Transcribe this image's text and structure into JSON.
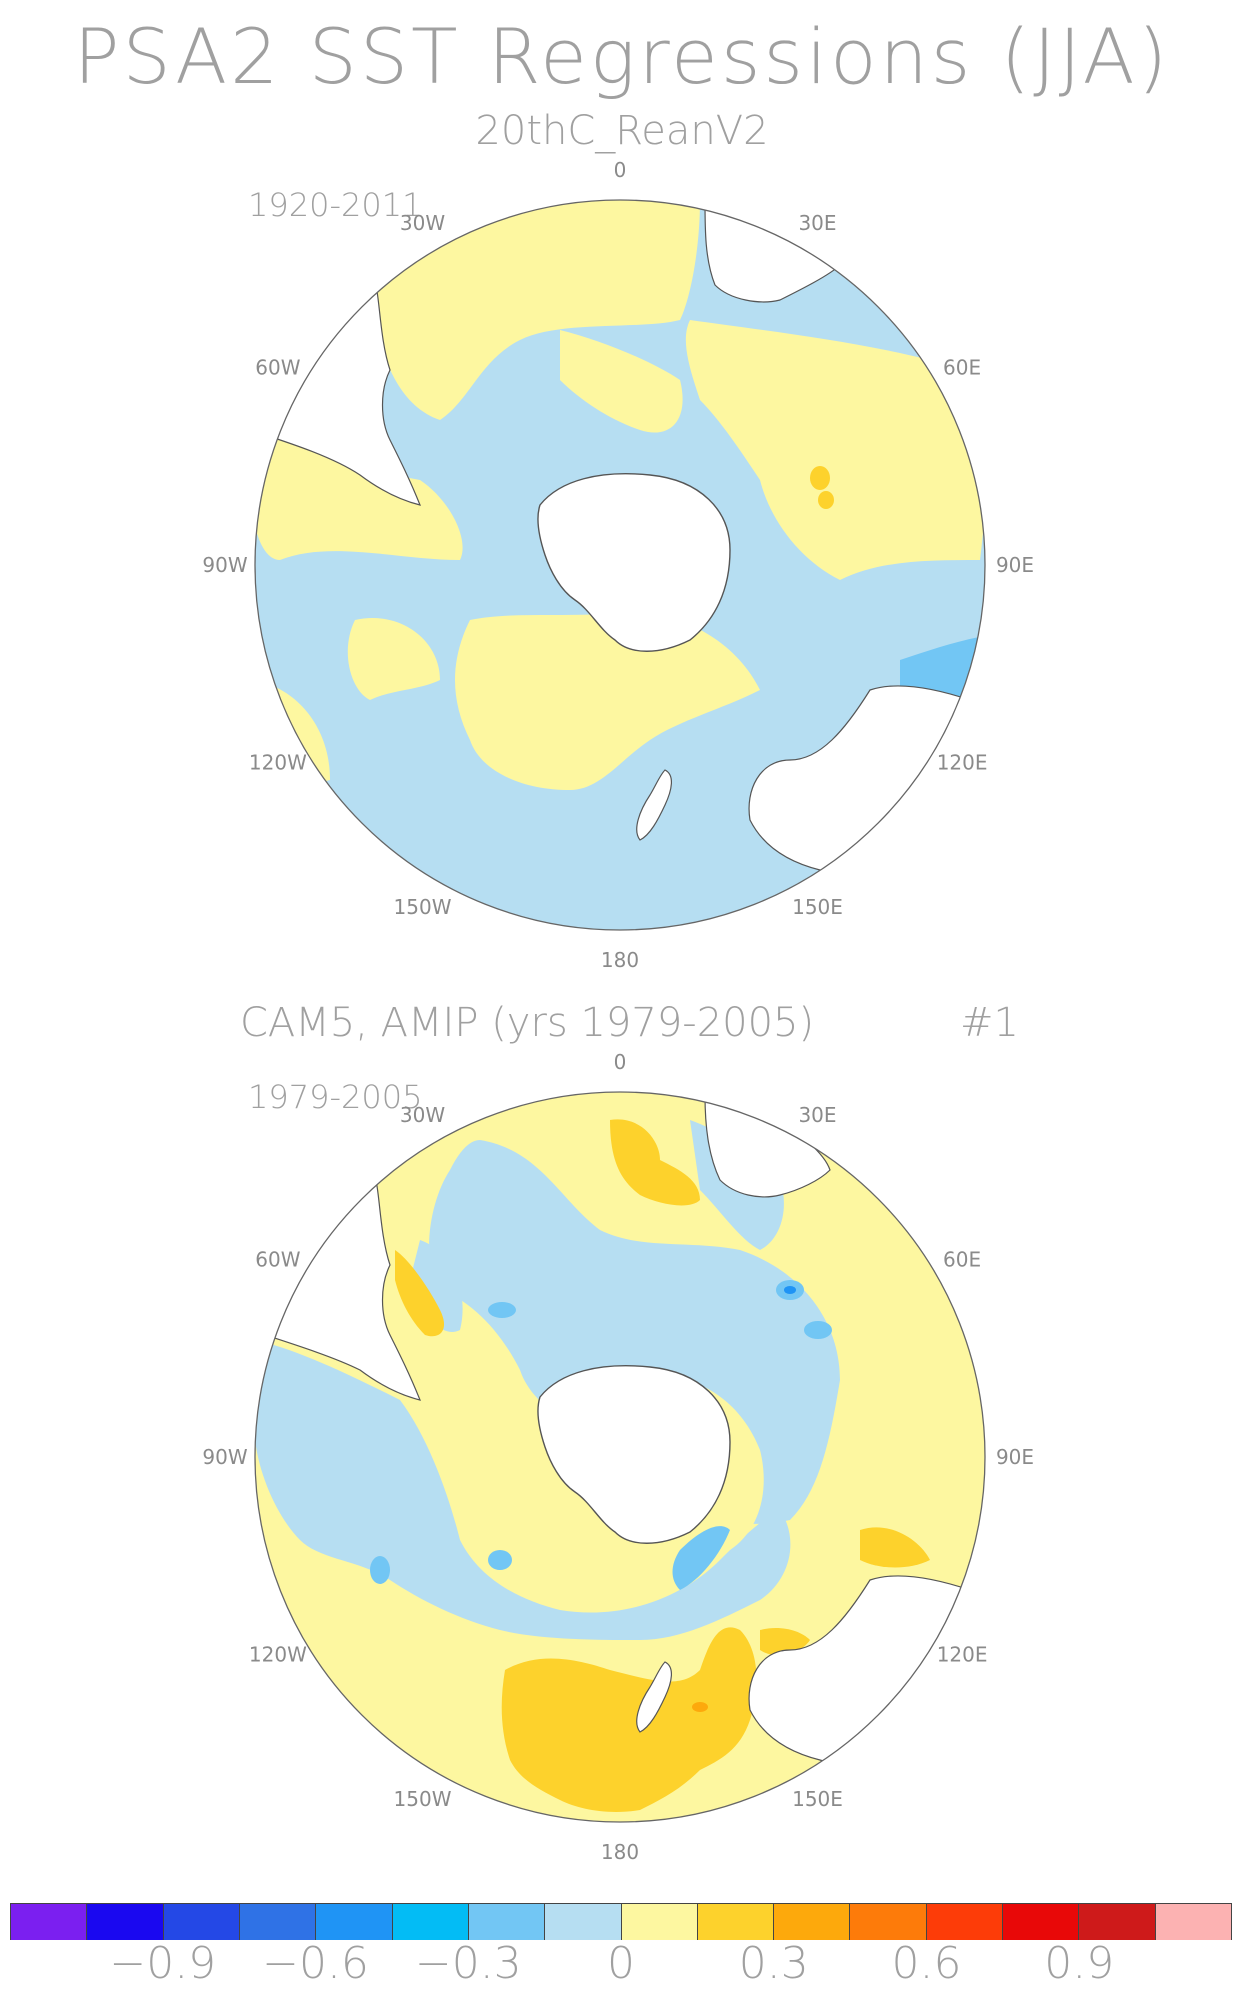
{
  "title": "PSA2 SST Regressions (JJA)",
  "panels": [
    {
      "title": "20thC_ReanV2",
      "period": "1920-2011",
      "tag": ""
    },
    {
      "title": "CAM5, AMIP (yrs 1979-2005)",
      "period": "1979-2005",
      "tag": "#1"
    }
  ],
  "lon_labels": [
    "0",
    "30E",
    "60E",
    "90E",
    "120E",
    "150E",
    "180",
    "150W",
    "120W",
    "90W",
    "60W",
    "30W"
  ],
  "colorbar": {
    "colors": [
      "#7b1ff0",
      "#1a08f0",
      "#2448e6",
      "#2f72e6",
      "#1f94f5",
      "#03bcf5",
      "#72c6f4",
      "#b6def2",
      "#fdf7a0",
      "#fdd22c",
      "#fda90c",
      "#fd7b0a",
      "#fd3c08",
      "#e80808",
      "#ce1a1a",
      "#fcb2b2"
    ],
    "labels": [
      "-0.9",
      "-0.6",
      "-0.3",
      "0",
      "0.3",
      "0.6",
      "0.9"
    ]
  },
  "colors": {
    "ocean_neg": "#b6def2",
    "ocean_pos": "#fdf7a0",
    "pos_mid": "#fdd22c",
    "neg_mid": "#72c6f4",
    "land": "#ffffff"
  }
}
